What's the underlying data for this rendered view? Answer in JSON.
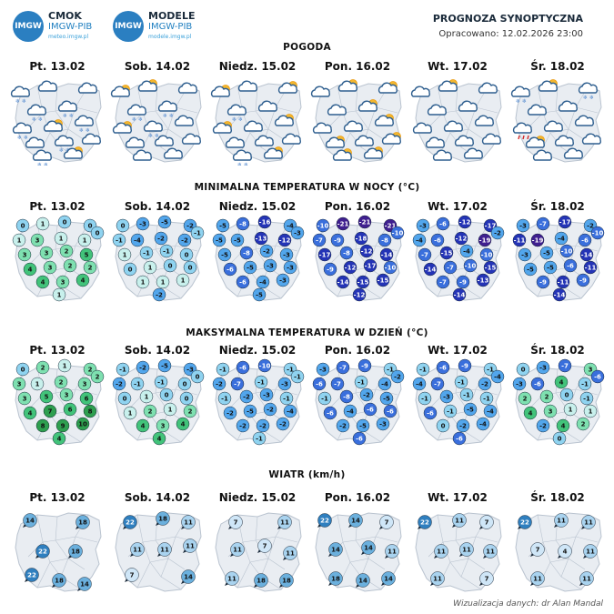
{
  "header": {
    "logo1": {
      "badge": "IMGW",
      "name": "CMOK",
      "org": "IMGW-PIB",
      "url": "meteo.imgw.pl"
    },
    "logo2": {
      "badge": "IMGW",
      "name": "MODELE",
      "org": "IMGW-PIB",
      "url": "modele.imgw.pl"
    },
    "title": "PROGNOZA SYNOPTYCZNA",
    "subtitle": "Opracowano: 12.02.2026 23:00"
  },
  "colors": {
    "map_fill": "#e9edf2",
    "map_border": "#b9c3cf",
    "weather_cloud": "#2f5f8f",
    "temp_scale": [
      "#3f1f8f",
      "#2434b6",
      "#3a6fdc",
      "#52a6ec",
      "#8fd3f0",
      "#c8f0ec",
      "#7ee0b0",
      "#42c37a",
      "#2e9f4f"
    ],
    "wind_scale": [
      "#cfe6f7",
      "#a9d3ef",
      "#6bb0dd",
      "#2f7fbf"
    ]
  },
  "sections": {
    "weather": "POGODA",
    "tmin": "MINIMALNA TEMPERATURA W NOCY (°C)",
    "tmax": "MAKSYMALNA TEMPERATURA W DZIEŃ (°C)",
    "wind": "WIATR (km/h)"
  },
  "days": [
    "Pt. 13.02",
    "Sob. 14.02",
    "Niedz. 15.02",
    "Pon. 16.02",
    "Wt. 17.02",
    "Śr. 18.02"
  ],
  "weather_icons": [
    [
      "cloud-snow-icon",
      "cloud-icon",
      "cloud-icon",
      "cloud-snow-icon",
      "cloud-snow-icon",
      "cloud-snow-icon",
      "cloud-sun-icon",
      "cloud-snow-icon",
      "cloud-icon",
      "cloud-snow-icon",
      "cloud-snow-icon",
      "sun-cloud-icon",
      "cloud-icon"
    ],
    [
      "sun-cloud-icon",
      "sun-cloud-icon",
      "cloud-icon",
      "cloud-snow-icon",
      "cloud-snow-icon",
      "sun-cloud-icon",
      "cloud-snow-icon",
      "cloud-icon",
      "cloud-icon",
      "cloud-icon",
      "cloud-icon",
      "cloud-icon",
      "cloud-icon"
    ],
    [
      "sun-cloud-icon",
      "cloud-icon",
      "sun-cloud-icon",
      "cloud-snow-icon",
      "cloud-icon",
      "sun-cloud-icon",
      "cloud-icon",
      "sun-cloud-icon",
      "cloud-icon",
      "cloud-icon",
      "cloud-snow-icon",
      "sun-cloud-icon",
      "cloud-icon"
    ],
    [
      "cloud-icon",
      "sun-cloud-icon",
      "sun-cloud-icon",
      "cloud-icon",
      "sun-cloud-icon",
      "cloud-icon",
      "cloud-icon",
      "sun-cloud-icon",
      "sun-cloud-icon",
      "cloud-icon",
      "sun-cloud-icon",
      "sun-cloud-icon",
      "sun-cloud-icon"
    ],
    [
      "cloud-icon",
      "sun-cloud-icon",
      "cloud-icon",
      "cloud-icon",
      "cloud-icon",
      "cloud-icon",
      "cloud-icon",
      "cloud-icon",
      "cloud-icon",
      "cloud-icon",
      "cloud-icon",
      "cloud-icon",
      "cloud-icon"
    ],
    [
      "cloud-snow-icon",
      "sun-cloud-icon",
      "cloud-snow-icon",
      "cloud-icon",
      "cloud-icon",
      "cloud-rain-icon",
      "cloud-icon",
      "cloud-icon",
      "sun-cloud-icon",
      "cloud-icon",
      "cloud-icon",
      "cloud-icon",
      "cloud-icon"
    ]
  ],
  "tmin": [
    [
      "0",
      "1",
      "0",
      "0",
      "1",
      "3",
      "1",
      "1",
      "0",
      "3",
      "3",
      "2",
      "5",
      "4",
      "3",
      "2",
      "2",
      "4",
      "3",
      "4",
      "1"
    ],
    [
      "0",
      "-3",
      "-5",
      "-2",
      "-1",
      "-4",
      "-2",
      "-2",
      "-1",
      "1",
      "-1",
      "-1",
      "0",
      "0",
      "1",
      "0",
      "0",
      "1",
      "1",
      "1",
      "-2"
    ],
    [
      "-5",
      "-8",
      "-16",
      "-4",
      "-5",
      "-5",
      "-13",
      "-12",
      "-3",
      "-5",
      "-8",
      "-2",
      "-3",
      "-6",
      "-5",
      "-3",
      "-3",
      "-6",
      "-4",
      "-3",
      "-5"
    ],
    [
      "-10",
      "-21",
      "-21",
      "-21",
      "-7",
      "-9",
      "-18",
      "-8",
      "-10",
      "-17",
      "-8",
      "-12",
      "-14",
      "-9",
      "-12",
      "-17",
      "-10",
      "-14",
      "-15",
      "-15",
      "-12"
    ],
    [
      "-3",
      "-6",
      "-12",
      "-17",
      "-4",
      "-6",
      "-12",
      "-19",
      "-2",
      "-7",
      "-15",
      "-4",
      "-10",
      "-14",
      "-7",
      "-10",
      "-15",
      "-7",
      "-9",
      "-13",
      "-14"
    ],
    [
      "-3",
      "-7",
      "-17",
      "-2",
      "-11",
      "-19",
      "-4",
      "-6",
      "-10",
      "-3",
      "-5",
      "-10",
      "-14",
      "-5",
      "-5",
      "-6",
      "-11",
      "-9",
      "-11",
      "-9",
      "-14"
    ]
  ],
  "tmax": [
    [
      "0",
      "2",
      "1",
      "2",
      "3",
      "1",
      "2",
      "3",
      "2",
      "3",
      "5",
      "3",
      "6",
      "4",
      "7",
      "6",
      "8",
      "8",
      "9",
      "10",
      "4"
    ],
    [
      "-1",
      "-2",
      "-5",
      "-3",
      "-2",
      "-1",
      "-1",
      "0",
      "0",
      "0",
      "1",
      "0",
      "0",
      "1",
      "2",
      "1",
      "2",
      "4",
      "3",
      "4",
      "4"
    ],
    [
      "-1",
      "-6",
      "-10",
      "-1",
      "-2",
      "-7",
      "-1",
      "-3",
      "-1",
      "-1",
      "-2",
      "-3",
      "-1",
      "-2",
      "-5",
      "-2",
      "-4",
      "-2",
      "-2",
      "-2",
      "-1"
    ],
    [
      "-3",
      "-7",
      "-9",
      "-1",
      "-6",
      "-7",
      "-1",
      "-4",
      "-2",
      "-1",
      "-8",
      "-2",
      "-5",
      "-6",
      "-4",
      "-6",
      "-6",
      "-2",
      "-5",
      "-3",
      "-6"
    ],
    [
      "-1",
      "-6",
      "-9",
      "-1",
      "-4",
      "-7",
      "-1",
      "-2",
      "-4",
      "-1",
      "-3",
      "-1",
      "-1",
      "-6",
      "-1",
      "-5",
      "-4",
      "0",
      "-2",
      "-4",
      "-6"
    ],
    [
      "0",
      "-3",
      "-7",
      "3",
      "-3",
      "-6",
      "4",
      "-1",
      "-6",
      "2",
      "2",
      "0",
      "-1",
      "4",
      "3",
      "1",
      "1",
      "-2",
      "4",
      "2",
      "0"
    ]
  ],
  "wind": [
    [
      "14",
      "18",
      "22",
      "18",
      "22",
      "18",
      "14"
    ],
    [
      "22",
      "18",
      "11",
      "11",
      "11",
      "11",
      "14",
      "7"
    ],
    [
      "7",
      "11",
      "11",
      "7",
      "11",
      "11",
      "18",
      "18"
    ],
    [
      "22",
      "14",
      "7",
      "14",
      "14",
      "11",
      "18",
      "14",
      "14"
    ],
    [
      "22",
      "11",
      "7",
      "11",
      "11",
      "11",
      "11",
      "7"
    ],
    [
      "22",
      "11",
      "11",
      "7",
      "4",
      "11",
      "11",
      "11"
    ]
  ],
  "credit": "Wizualizacja danych: dr Alan Mandal"
}
